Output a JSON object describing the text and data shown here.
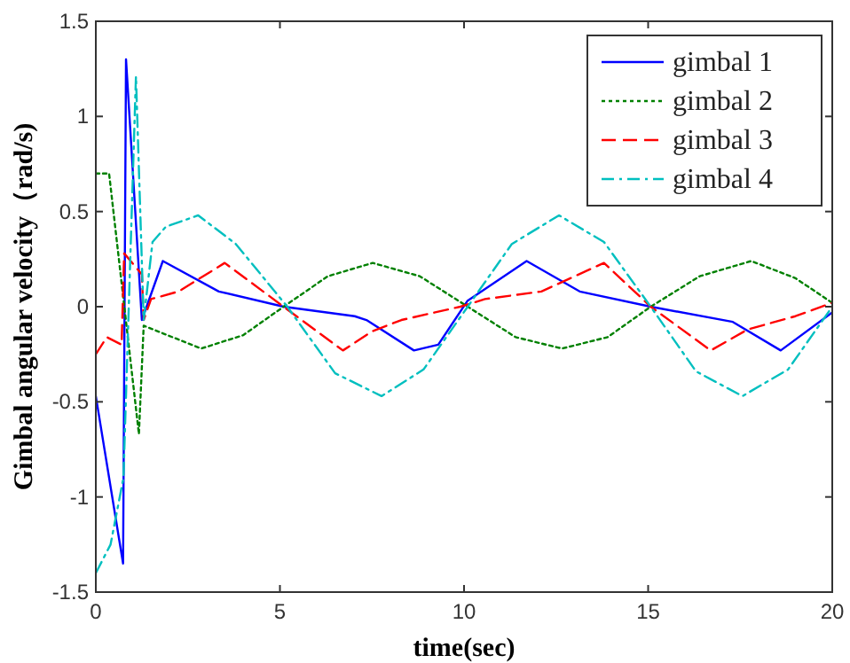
{
  "chart_data": {
    "type": "line",
    "xlabel": "time(sec)",
    "ylabel": "Gimbal angular velocity（rad/s)",
    "xlim": [
      0,
      20
    ],
    "ylim": [
      -1.5,
      1.5
    ],
    "xticks": [
      0,
      5,
      10,
      15,
      20
    ],
    "yticks": [
      -1.5,
      -1,
      -0.5,
      0,
      0.5,
      1,
      1.5
    ],
    "legend": "top right",
    "grid": false,
    "series": [
      {
        "name": "gimbal 1",
        "color": "#0000ff",
        "line_style": "solid",
        "x": [
          0,
          0.74,
          0.82,
          1.25,
          1.82,
          3.34,
          5.1,
          7.03,
          7.35,
          8.64,
          9.3,
          10.09,
          11.7,
          13.14,
          15.07,
          17.3,
          18.6,
          20
        ],
        "values": [
          -0.47,
          -1.35,
          1.3,
          -0.07,
          0.24,
          0.08,
          0,
          -0.05,
          -0.07,
          -0.23,
          -0.2,
          0.03,
          0.24,
          0.08,
          0,
          -0.08,
          -0.23,
          -0.03
        ]
      },
      {
        "name": "gimbal 2",
        "color": "#008000",
        "line_style": "dotted",
        "x": [
          0,
          0.36,
          1.17,
          1.3,
          2.86,
          4.0,
          5.1,
          6.3,
          7.52,
          8.8,
          10.1,
          11.4,
          12.66,
          13.9,
          15.07,
          16.4,
          17.8,
          19.0,
          20
        ],
        "values": [
          0.7,
          0.7,
          -0.67,
          -0.1,
          -0.22,
          -0.15,
          0,
          0.16,
          0.23,
          0.16,
          0,
          -0.16,
          -0.22,
          -0.16,
          0,
          0.16,
          0.24,
          0.15,
          0.02
        ]
      },
      {
        "name": "gimbal 3",
        "color": "#ff0000",
        "line_style": "dashed",
        "x": [
          0,
          0.3,
          0.7,
          0.77,
          1.25,
          1.3,
          1.5,
          2.25,
          3.5,
          5.1,
          6.71,
          7.5,
          8.3,
          9.9,
          10.57,
          12.1,
          13.8,
          15.07,
          16.7,
          17.7,
          19,
          20
        ],
        "values": [
          -0.25,
          -0.16,
          -0.2,
          0.28,
          0.17,
          -0.07,
          0.04,
          0.08,
          0.23,
          0,
          -0.23,
          -0.13,
          -0.07,
          0,
          0.04,
          0.08,
          0.23,
          0,
          -0.23,
          -0.12,
          -0.05,
          0.02
        ]
      },
      {
        "name": "gimbal 4",
        "color": "#00bfbf",
        "line_style": "dashdot",
        "x": [
          0,
          0.4,
          0.75,
          1.09,
          1.3,
          1.54,
          1.9,
          2.78,
          3.8,
          5.2,
          6.5,
          7.76,
          8.9,
          10.1,
          11.3,
          12.58,
          13.8,
          15.07,
          16.3,
          17.56,
          18.8,
          20
        ],
        "values": [
          -1.4,
          -1.25,
          -0.9,
          1.21,
          -0.07,
          0.34,
          0.42,
          0.48,
          0.33,
          0,
          -0.35,
          -0.47,
          -0.33,
          0,
          0.33,
          0.48,
          0.34,
          0,
          -0.34,
          -0.47,
          -0.33,
          0
        ]
      }
    ]
  }
}
